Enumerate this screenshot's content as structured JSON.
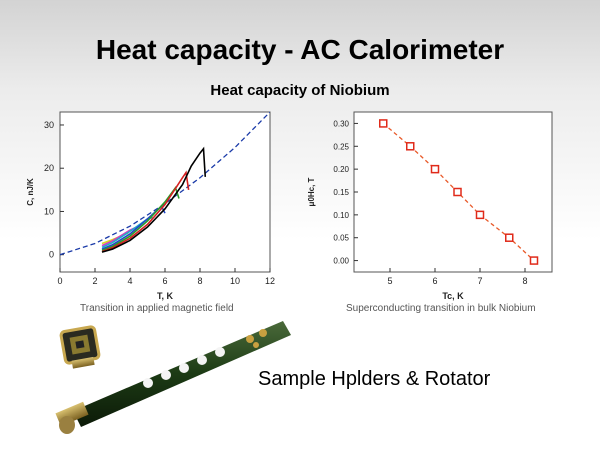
{
  "slide": {
    "title": "Heat capacity - AC Calorimeter",
    "subtitle": "Heat capacity of Niobium",
    "left_caption": "Transition in applied magnetic field",
    "right_caption": "Superconducting transition in bulk Niobium",
    "photo_label": "Sample Hplders & Rotator"
  },
  "chart_data": [
    {
      "type": "line",
      "xlabel": "T, K",
      "ylabel": "C, nJ/K",
      "xlim": [
        0,
        12
      ],
      "ylim": [
        -4,
        33
      ],
      "x_ticks": [
        0,
        2,
        4,
        6,
        8,
        10,
        12
      ],
      "y_ticks": [
        0,
        10,
        20,
        30
      ],
      "grid": false,
      "normal_state": {
        "x": [
          0,
          2,
          4,
          6,
          8,
          10,
          12
        ],
        "y": [
          0,
          2.6,
          6.6,
          11.8,
          17.8,
          24.8,
          33
        ],
        "color": "#1a3aa8",
        "style": "dashed"
      },
      "series": [
        {
          "color": "#000000",
          "x": [
            2.4,
            3,
            4,
            5,
            6,
            7,
            7.5,
            8,
            8.2,
            8.3
          ],
          "y": [
            0.6,
            1.3,
            3.3,
            6.4,
            10.6,
            16.2,
            20.5,
            23.5,
            24.5,
            18.0
          ]
        },
        {
          "color": "#d62020",
          "x": [
            2.4,
            3,
            4,
            5,
            6,
            7,
            7.2,
            7.35
          ],
          "y": [
            0.7,
            1.6,
            3.8,
            7.0,
            11.6,
            17.8,
            19.0,
            15.0
          ]
        },
        {
          "color": "#2a9a2a",
          "x": [
            2.4,
            3,
            4,
            5,
            6,
            6.6,
            6.8
          ],
          "y": [
            1.0,
            1.9,
            4.3,
            7.8,
            12.2,
            15.5,
            13.0
          ]
        },
        {
          "color": "#2048c8",
          "x": [
            2.4,
            3,
            4,
            5,
            5.8,
            6.0
          ],
          "y": [
            1.3,
            2.3,
            4.8,
            8.3,
            11.2,
            9.6
          ]
        },
        {
          "color": "#20a8c8",
          "x": [
            2.4,
            3,
            4,
            5,
            5.3
          ],
          "y": [
            1.7,
            2.8,
            5.4,
            8.3,
            8.6
          ]
        },
        {
          "color": "#d040c0",
          "x": [
            2.4,
            3,
            4,
            4.6
          ],
          "y": [
            2.1,
            3.2,
            5.7,
            6.8
          ]
        },
        {
          "color": "#d8d820",
          "x": [
            2.4,
            3,
            3.9
          ],
          "y": [
            2.6,
            3.5,
            5.0
          ]
        }
      ]
    },
    {
      "type": "scatter",
      "xlabel": "Tc, K",
      "ylabel": "μ0Hc, T",
      "xlim": [
        4.2,
        8.6
      ],
      "ylim": [
        -0.025,
        0.325
      ],
      "x_ticks": [
        5,
        6,
        7,
        8
      ],
      "y_ticks": [
        0.0,
        0.05,
        0.1,
        0.15,
        0.2,
        0.25,
        0.3
      ],
      "y_tick_labels": [
        "0.00",
        "0.05",
        "0.10",
        "0.15",
        "0.20",
        "0.25",
        "0.30"
      ],
      "grid": false,
      "marker_color": "#e02a1a",
      "line_color": "#e85a2a",
      "x": [
        4.85,
        5.45,
        6.0,
        6.5,
        7.0,
        7.65,
        8.2
      ],
      "y": [
        0.3,
        0.25,
        0.2,
        0.15,
        0.1,
        0.05,
        0.0
      ]
    }
  ],
  "icons": {
    "chip": "sample-chip-icon",
    "rod": "sample-rod-icon"
  }
}
